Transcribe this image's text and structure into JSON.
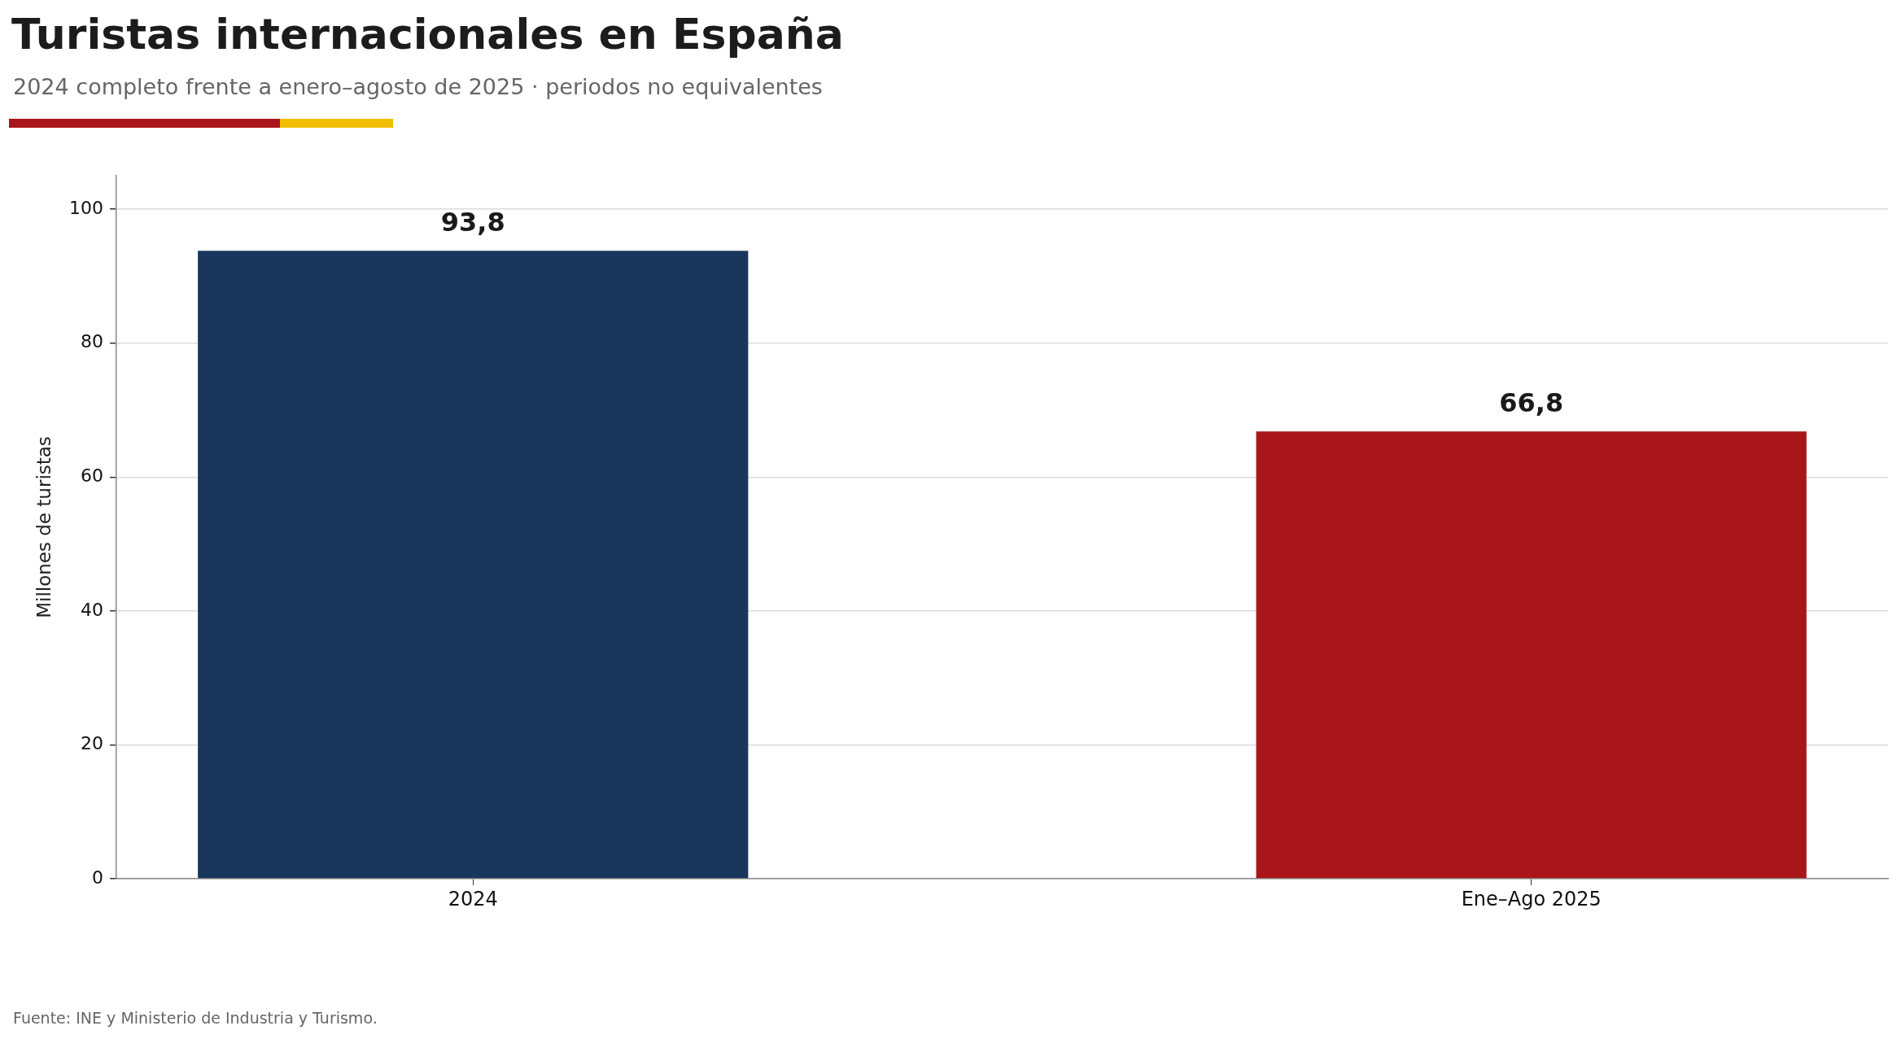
{
  "chart_data": {
    "type": "bar",
    "title": "Turistas internacionales en España",
    "subtitle": "2024 completo frente a enero–agosto de 2025 · periodos no equivalentes",
    "ylabel": "Millones de turistas",
    "categories": [
      "2024",
      "Ene–Ago 2025"
    ],
    "values": [
      93.8,
      66.8
    ],
    "colors": [
      "#1a365d",
      "#a8161c"
    ],
    "value_labels": [
      "93,8",
      "66,8"
    ],
    "ylim": [
      0,
      105
    ],
    "yticks": [
      0,
      20,
      40,
      60,
      80,
      100
    ],
    "grid": "y",
    "annotations": [
      "Fuente: INE y Ministerio de Industria y Turismo."
    ]
  }
}
